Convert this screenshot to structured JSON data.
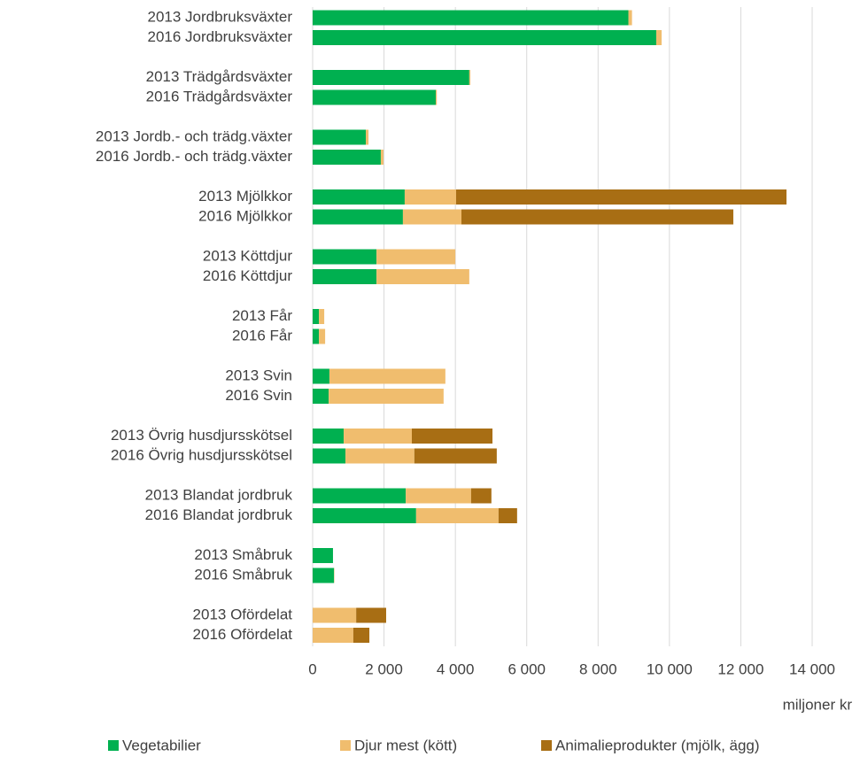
{
  "chart_data": {
    "type": "bar",
    "orientation": "horizontal",
    "stacked": true,
    "x_label": "miljoner kr",
    "categories": [
      "2013 Jordbruksväxter",
      "2016 Jordbruksväxter",
      "2013 Trädgårdsväxter",
      "2016 Trädgårdsväxter",
      "2013 Jordb.- och trädg.växter",
      "2016 Jordb.- och trädg.växter",
      "2013 Mjölkkor",
      "2016 Mjölkkor",
      "2013 Köttdjur",
      "2016 Köttdjur",
      "2013 Får",
      "2016 Får",
      "2013 Svin",
      "2016 Svin",
      "2013 Övrig husdjursskötsel",
      "2016 Övrig husdjursskötsel",
      "2013 Blandat jordbruk",
      "2016 Blandat jordbruk",
      "2013 Småbruk",
      "2016 Småbruk",
      "2013 Ofördelat",
      "2016 Ofördelat"
    ],
    "series": [
      {
        "name": "Vegetabilier",
        "color": "#00b050",
        "values": [
          8850,
          9630,
          4390,
          3450,
          1490,
          1910,
          2580,
          2530,
          1790,
          1790,
          175,
          175,
          470,
          450,
          870,
          920,
          2610,
          2900,
          570,
          600,
          0,
          0
        ]
      },
      {
        "name": "Djur mest (kött)",
        "color": "#f0bd6e",
        "values": [
          100,
          150,
          30,
          30,
          75,
          75,
          1440,
          1640,
          2210,
          2600,
          150,
          175,
          3250,
          3220,
          1910,
          1930,
          1830,
          2310,
          0,
          10,
          1220,
          1140
        ]
      },
      {
        "name": "Animalieprodukter (mjölk, ägg)",
        "color": "#a86e14",
        "values": [
          0,
          0,
          0,
          0,
          0,
          0,
          9260,
          7620,
          0,
          0,
          0,
          0,
          0,
          0,
          2260,
          2310,
          570,
          520,
          0,
          0,
          840,
          450
        ]
      }
    ],
    "xlim": [
      0,
      14000
    ],
    "xticks": [
      0,
      {
        "value": 2000,
        "label": "2 000"
      },
      {
        "value": 4000,
        "label": "4 000"
      },
      {
        "value": 6000,
        "label": "6 000"
      },
      {
        "value": 8000,
        "label": "8 000"
      },
      {
        "value": 10000,
        "label": "10 000"
      },
      {
        "value": 12000,
        "label": "12 000"
      },
      {
        "value": 14000,
        "label": "14 000"
      }
    ],
    "grid": true,
    "legend": "bottom"
  }
}
